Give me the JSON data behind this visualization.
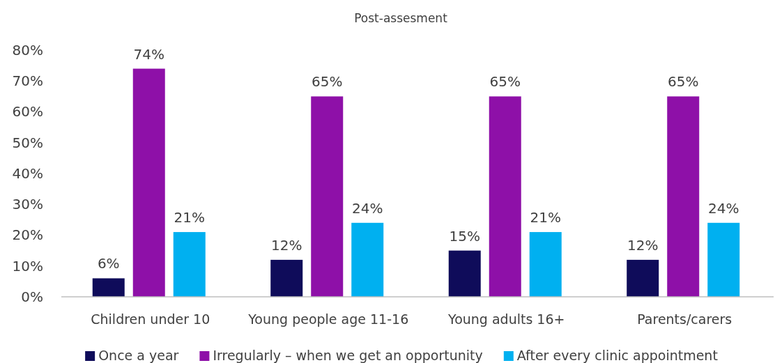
{
  "chart_data": {
    "type": "bar",
    "title": "Post-assesment",
    "categories": [
      "Children under 10",
      "Young people age 11-16",
      "Young adults 16+",
      "Parents/carers"
    ],
    "series": [
      {
        "name": "Once a year",
        "color": "#0f0c5a",
        "values": [
          6,
          12,
          15,
          12
        ],
        "value_labels": [
          "6%",
          "12%",
          "15%",
          "12%"
        ]
      },
      {
        "name": "Irregularly – when we get an opportunity",
        "color": "#8e10a8",
        "values": [
          74,
          65,
          65,
          65
        ],
        "value_labels": [
          "74%",
          "65%",
          "65%",
          "65%"
        ]
      },
      {
        "name": "After every clinic appointment",
        "color": "#00b0f0",
        "values": [
          21,
          24,
          21,
          24
        ],
        "value_labels": [
          "21%",
          "24%",
          "21%",
          "24%"
        ]
      }
    ],
    "ylim": [
      0,
      80
    ],
    "yticks": [
      {
        "value": 0,
        "label": "0%"
      },
      {
        "value": 10,
        "label": "10%"
      },
      {
        "value": 20,
        "label": "20%"
      },
      {
        "value": 30,
        "label": "30%"
      },
      {
        "value": 40,
        "label": "40%"
      },
      {
        "value": 50,
        "label": "50%"
      },
      {
        "value": 60,
        "label": "60%"
      },
      {
        "value": 70,
        "label": "70%"
      },
      {
        "value": 80,
        "label": "80%"
      }
    ],
    "grid": false,
    "legend": "bottom"
  }
}
